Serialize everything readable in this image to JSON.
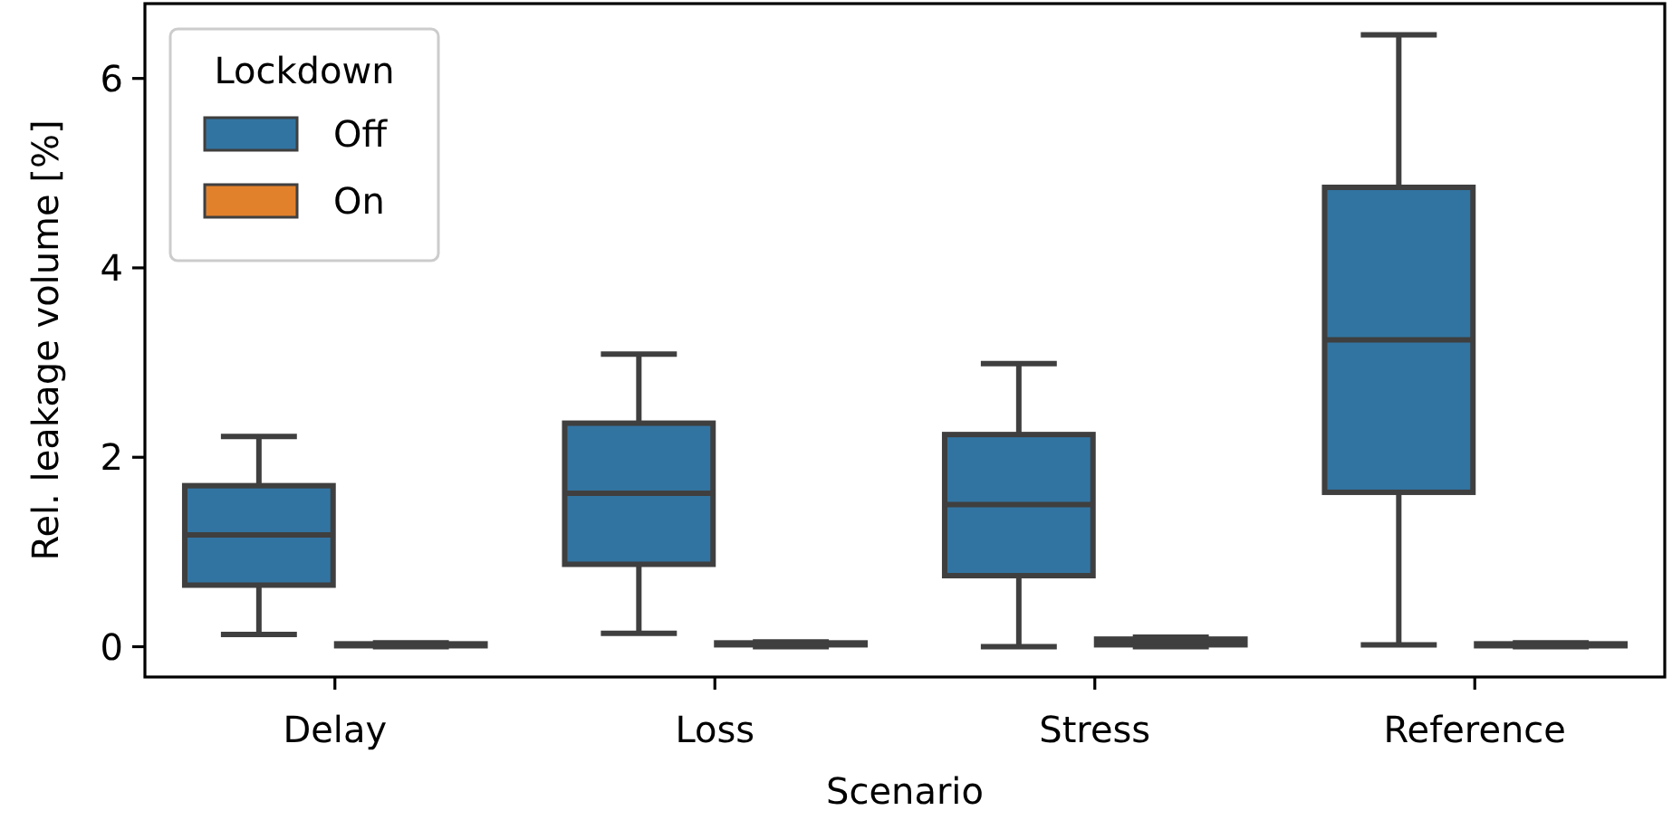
{
  "chart_data": {
    "type": "box",
    "xlabel": "Scenario",
    "ylabel": "Rel. leakage volume [%]",
    "legend_title": "Lockdown",
    "legend": "top left",
    "categories": [
      "Delay",
      "Loss",
      "Stress",
      "Reference"
    ],
    "ylim": [
      -0.32,
      6.79
    ],
    "yticks": [
      0,
      2,
      4,
      6
    ],
    "series": [
      {
        "name": "Off",
        "color": "#3274a1",
        "boxes": [
          {
            "low": 0.13,
            "q1": 0.65,
            "median": 1.18,
            "q3": 1.7,
            "high": 2.22
          },
          {
            "low": 0.14,
            "q1": 0.87,
            "median": 1.62,
            "q3": 2.36,
            "high": 3.09
          },
          {
            "low": 0,
            "q1": 0.75,
            "median": 1.5,
            "q3": 2.24,
            "high": 2.99
          },
          {
            "low": 0.02,
            "q1": 1.63,
            "median": 3.24,
            "q3": 4.85,
            "high": 6.46
          }
        ]
      },
      {
        "name": "On",
        "color": "#e1812c",
        "boxes": [
          {
            "low": 0,
            "q1": 0.01,
            "median": 0.02,
            "q3": 0.03,
            "high": 0.04
          },
          {
            "low": 0,
            "q1": 0.02,
            "median": 0.03,
            "q3": 0.04,
            "high": 0.05
          },
          {
            "low": 0,
            "q1": 0.02,
            "median": 0.05,
            "q3": 0.08,
            "high": 0.1
          },
          {
            "low": 0,
            "q1": 0.01,
            "median": 0.02,
            "q3": 0.03,
            "high": 0.04
          }
        ]
      }
    ]
  }
}
